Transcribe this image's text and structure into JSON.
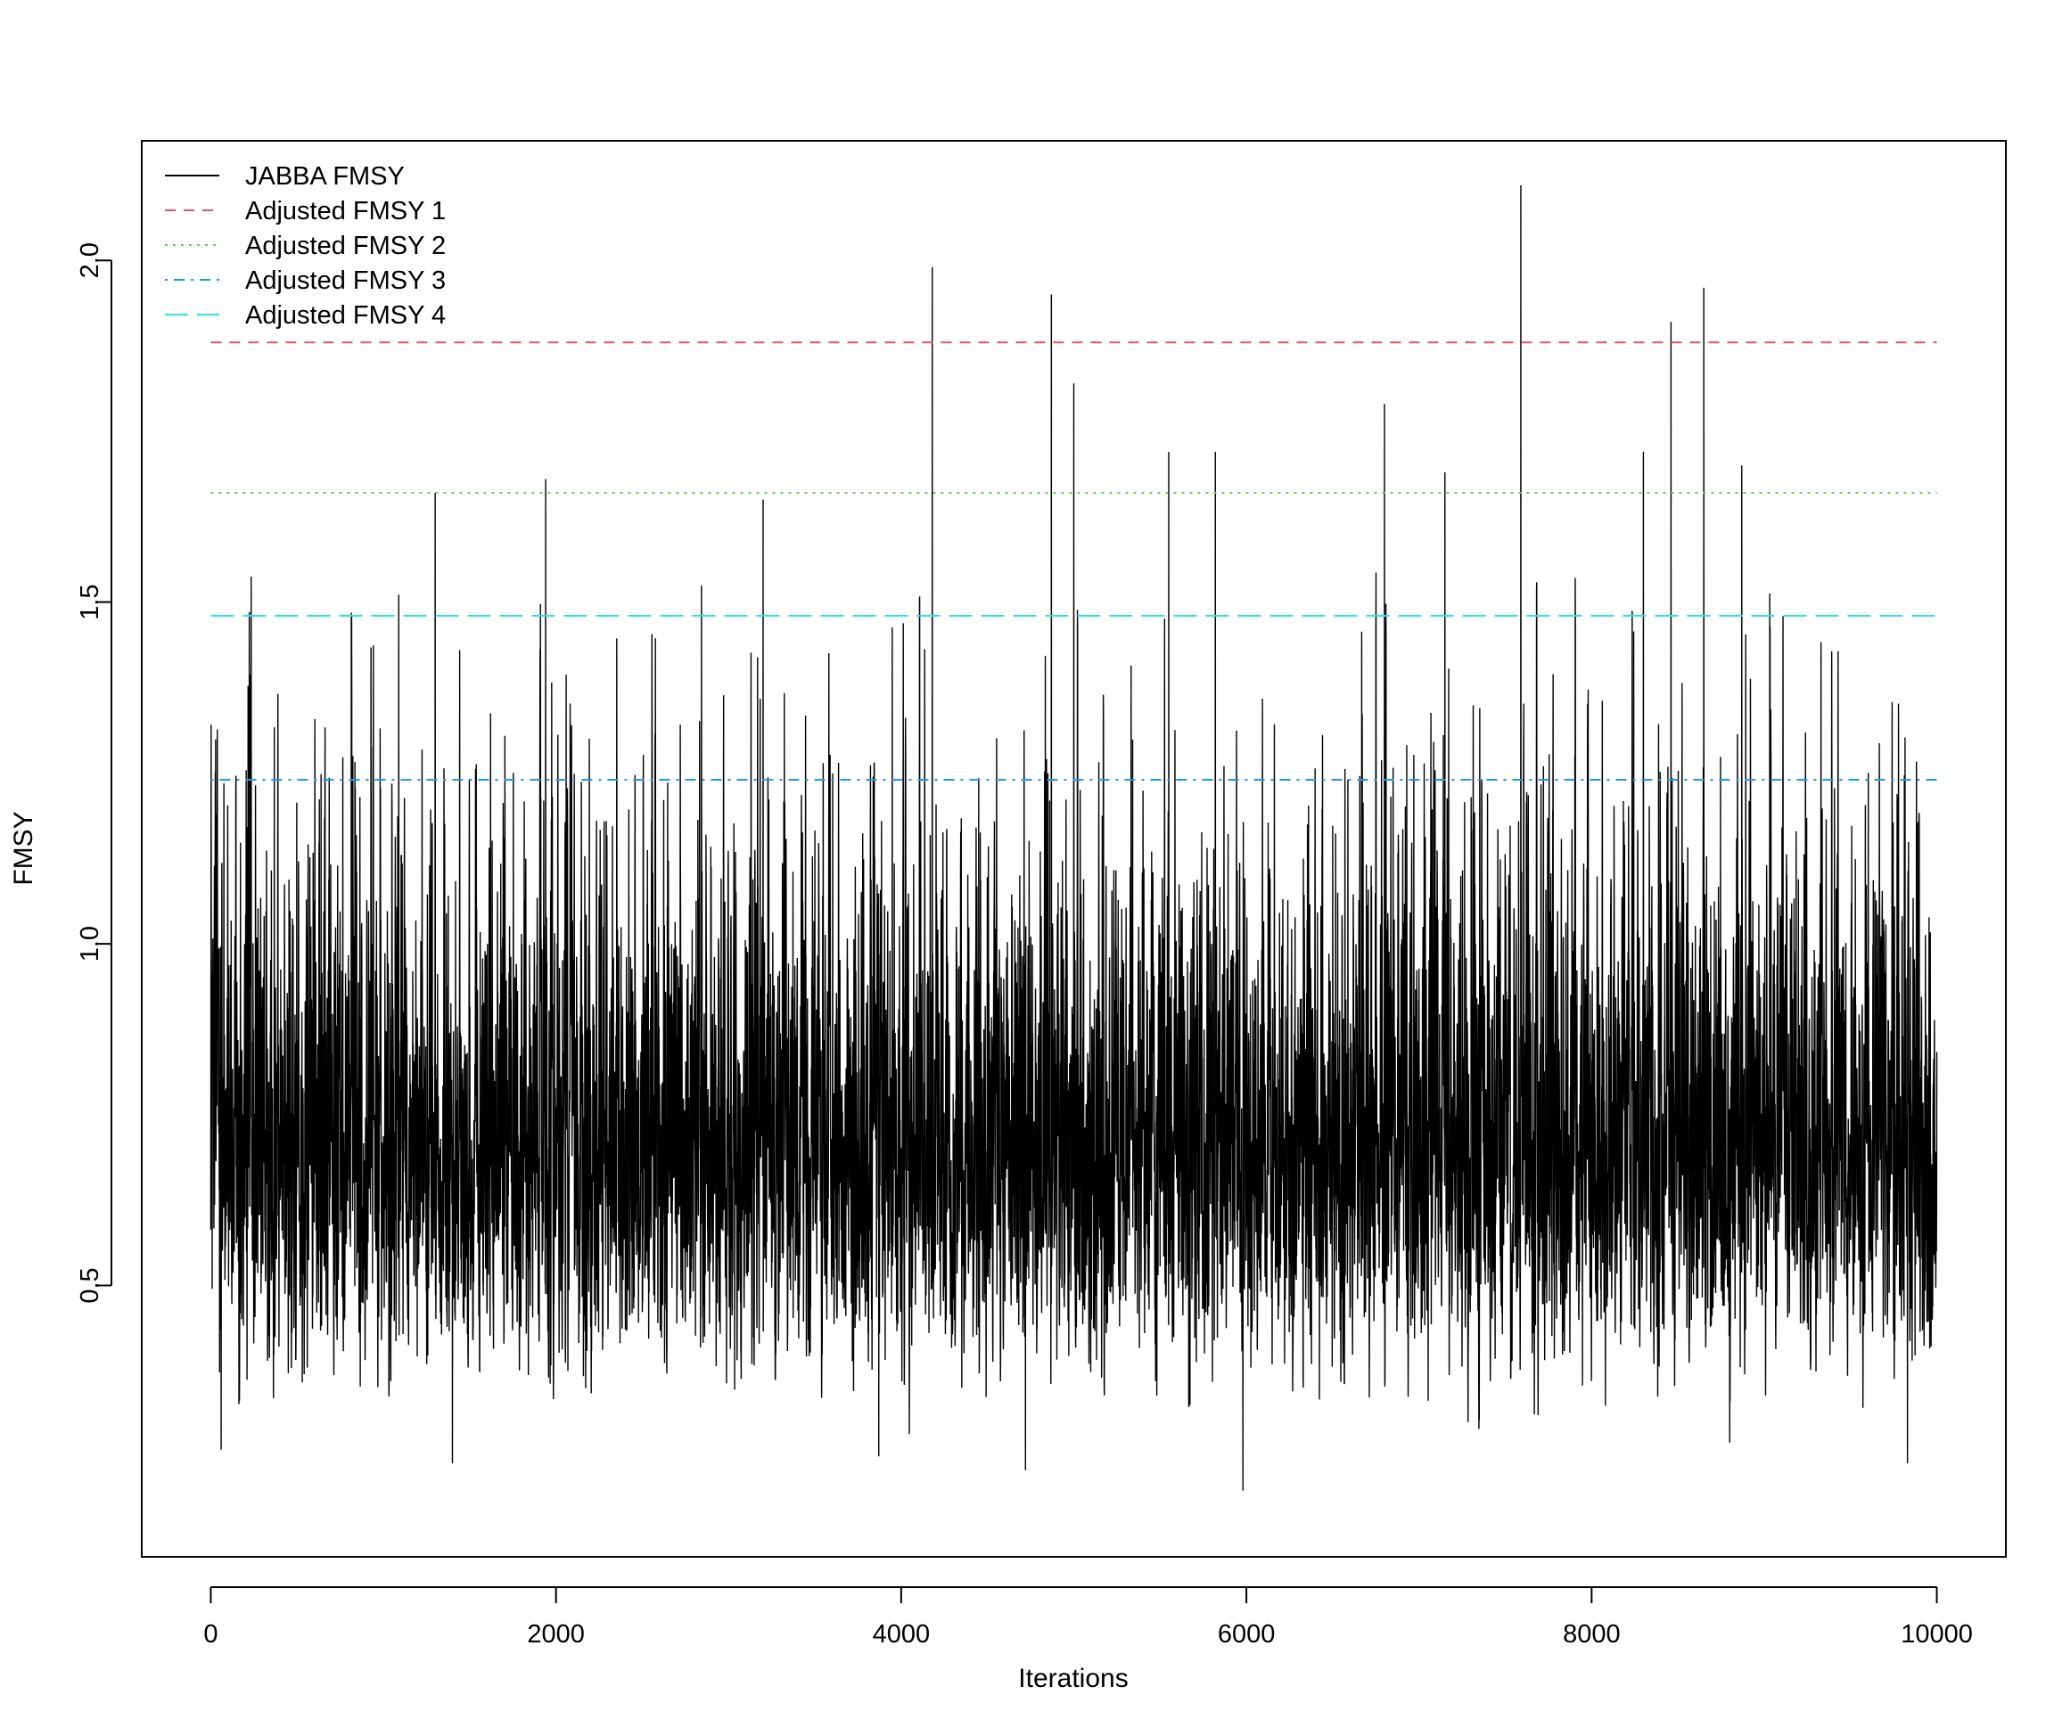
{
  "chart_data": {
    "type": "line",
    "title": "",
    "xlabel": "Iterations",
    "ylabel": "FMSY",
    "xlim": [
      -400,
      10400
    ],
    "ylim": [
      0.103,
      2.175
    ],
    "x_ticks": [
      0,
      2000,
      4000,
      6000,
      8000,
      10000
    ],
    "x_tick_labels": [
      "0",
      "2000",
      "4000",
      "6000",
      "8000",
      "10000"
    ],
    "y_ticks": [
      0.5,
      1.0,
      1.5,
      2.0
    ],
    "y_tick_labels": [
      "0.5",
      "1.0",
      "1.5",
      "2.0"
    ],
    "grid": false,
    "legend_position": "top-left",
    "trace": {
      "name": "JABBA FMSY",
      "color": "#000000",
      "n_iterations": 10000,
      "mean": 0.71,
      "typical_range": [
        0.35,
        1.3
      ],
      "min": 0.2,
      "max": 2.11,
      "peaks": [
        {
          "x": 4180,
          "y": 1.99
        },
        {
          "x": 4870,
          "y": 1.95
        },
        {
          "x": 5000,
          "y": 1.82
        },
        {
          "x": 7590,
          "y": 2.11
        },
        {
          "x": 8460,
          "y": 1.91
        },
        {
          "x": 8650,
          "y": 1.96
        },
        {
          "x": 6800,
          "y": 1.79
        },
        {
          "x": 5550,
          "y": 1.72
        },
        {
          "x": 5820,
          "y": 1.72
        },
        {
          "x": 8300,
          "y": 1.72
        },
        {
          "x": 8870,
          "y": 1.7
        },
        {
          "x": 1940,
          "y": 1.68
        },
        {
          "x": 1300,
          "y": 1.66
        },
        {
          "x": 3200,
          "y": 1.65
        },
        {
          "x": 7150,
          "y": 1.69
        },
        {
          "x": 4250,
          "y": 0.65
        }
      ],
      "troughs": [
        {
          "x": 5980,
          "y": 0.2
        },
        {
          "x": 4720,
          "y": 0.23
        },
        {
          "x": 1400,
          "y": 0.24
        },
        {
          "x": 9830,
          "y": 0.24
        },
        {
          "x": 3870,
          "y": 0.25
        },
        {
          "x": 60,
          "y": 0.26
        },
        {
          "x": 8800,
          "y": 0.27
        }
      ]
    },
    "reference_lines": [
      {
        "name": "Adjusted FMSY 1",
        "y": 1.88,
        "color": "#DF536B",
        "dash": "dashed"
      },
      {
        "name": "Adjusted FMSY 2",
        "y": 1.66,
        "color": "#61D04F",
        "dash": "dotted"
      },
      {
        "name": "Adjusted FMSY 3",
        "y": 1.24,
        "color": "#2297E6",
        "dash": "dotdash"
      },
      {
        "name": "Adjusted FMSY 4",
        "y": 1.48,
        "color": "#28E2E5",
        "dash": "longdash"
      }
    ],
    "legend": [
      {
        "label": "JABBA FMSY",
        "color": "#000000",
        "dash": "solid"
      },
      {
        "label": "Adjusted FMSY 1",
        "color": "#DF536B",
        "dash": "dashed"
      },
      {
        "label": "Adjusted FMSY 2",
        "color": "#61D04F",
        "dash": "dotted"
      },
      {
        "label": "Adjusted FMSY 3",
        "color": "#2297E6",
        "dash": "dotdash"
      },
      {
        "label": "Adjusted FMSY 4",
        "color": "#28E2E5",
        "dash": "longdash"
      }
    ]
  }
}
